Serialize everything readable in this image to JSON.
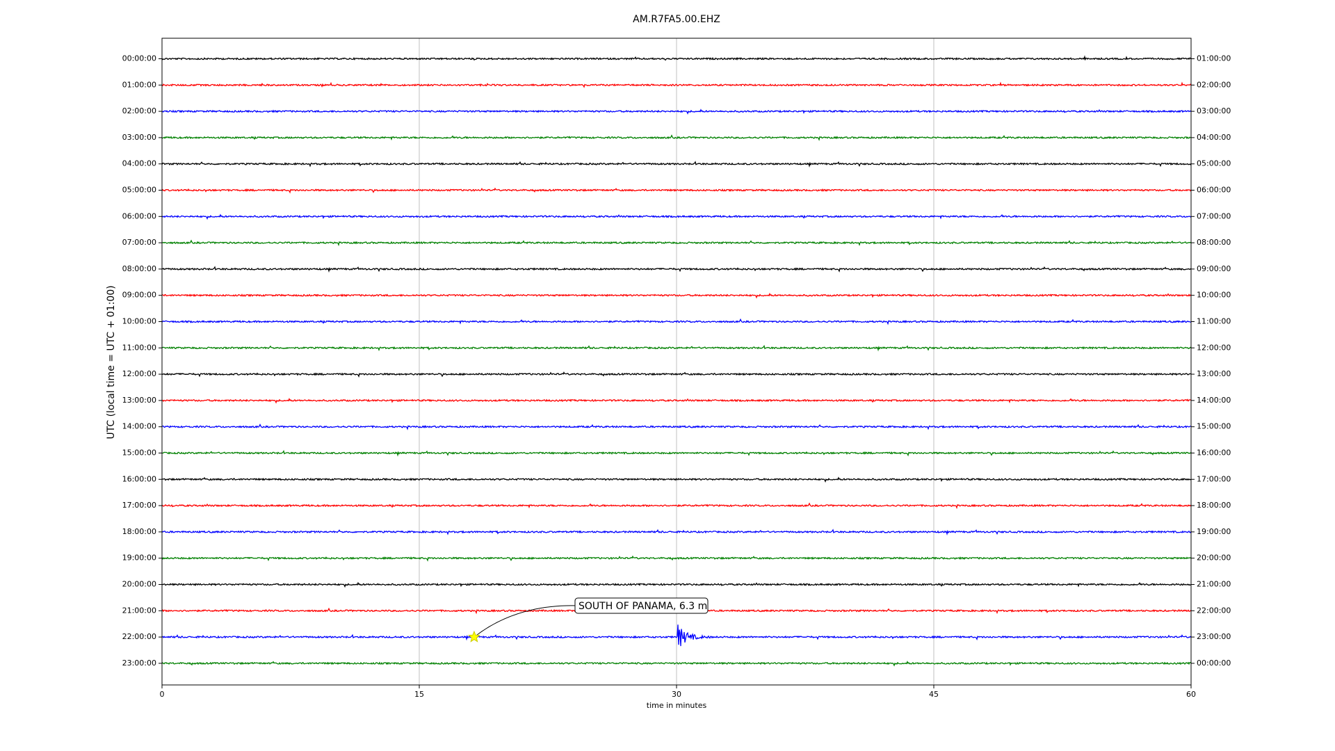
{
  "chart_data": {
    "type": "helicorder",
    "title": "AM.R7FA5.00.EHZ",
    "y_label": "UTC (local time = UTC + 01:00)",
    "x_label": "time in minutes",
    "categories": [
      "00:00:00",
      "01:00:00",
      "02:00:00",
      "03:00:00",
      "04:00:00",
      "05:00:00",
      "06:00:00",
      "07:00:00",
      "08:00:00",
      "09:00:00",
      "10:00:00",
      "11:00:00",
      "12:00:00",
      "13:00:00",
      "14:00:00",
      "15:00:00",
      "16:00:00",
      "17:00:00",
      "18:00:00",
      "19:00:00",
      "20:00:00",
      "21:00:00",
      "22:00:00",
      "23:00:00"
    ],
    "right_labels": [
      "01:00:00",
      "02:00:00",
      "03:00:00",
      "04:00:00",
      "05:00:00",
      "06:00:00",
      "07:00:00",
      "08:00:00",
      "09:00:00",
      "10:00:00",
      "11:00:00",
      "12:00:00",
      "13:00:00",
      "14:00:00",
      "15:00:00",
      "16:00:00",
      "17:00:00",
      "18:00:00",
      "19:00:00",
      "20:00:00",
      "21:00:00",
      "22:00:00",
      "23:00:00",
      "00:00:00"
    ],
    "colors": [
      "#000000",
      "#ff0000",
      "#0000ff",
      "#008000"
    ],
    "xlim": [
      0,
      60
    ],
    "xticks": [
      0,
      15,
      30,
      45,
      60
    ],
    "grid": true,
    "event": {
      "label": "SOUTH OF PANAMA, 6.3 m",
      "x": 18.2,
      "category": "22:00:00"
    }
  }
}
